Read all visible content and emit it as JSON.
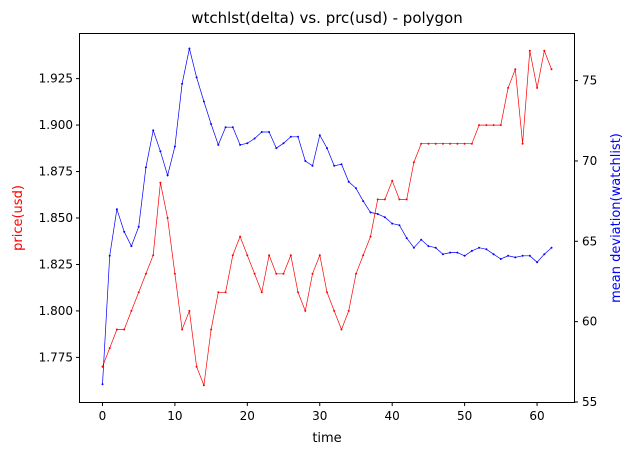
{
  "chart_data": {
    "type": "line",
    "title": "wtchlst(delta) vs. prc(usd) - polygon",
    "xlabel": "time",
    "ylabel_left": "price(usd)",
    "ylabel_right": "mean deviation(watchlist)",
    "xlim": [
      -3.1,
      65.1
    ],
    "ylim_left": [
      1.751,
      1.949
    ],
    "ylim_right": [
      55,
      77.9
    ],
    "x_ticks": [
      0,
      10,
      20,
      30,
      40,
      50,
      60
    ],
    "y_ticks_left": [
      "1.775",
      "1.800",
      "1.825",
      "1.850",
      "1.875",
      "1.900",
      "1.925"
    ],
    "y_ticks_left_values": [
      1.775,
      1.8,
      1.825,
      1.85,
      1.875,
      1.9,
      1.925
    ],
    "y_ticks_right": [
      "55",
      "60",
      "65",
      "70",
      "75"
    ],
    "y_ticks_right_values": [
      55,
      60,
      65,
      70,
      75
    ],
    "grid": false,
    "legend": "none",
    "series": [
      {
        "axis": "left",
        "color": "#ff0000",
        "x": [
          0,
          1,
          2,
          3,
          4,
          5,
          6,
          7,
          8,
          9,
          10,
          11,
          12,
          13,
          14,
          15,
          16,
          17,
          18,
          19,
          20,
          21,
          22,
          23,
          24,
          25,
          26,
          27,
          28,
          29,
          30,
          31,
          32,
          33,
          34,
          35,
          36,
          37,
          38,
          39,
          40,
          41,
          42,
          43,
          44,
          45,
          46,
          47,
          48,
          49,
          50,
          51,
          52,
          53,
          54,
          55,
          56,
          57,
          58,
          59,
          60,
          61,
          62
        ],
        "y": [
          1.77,
          1.78,
          1.79,
          1.79,
          1.8,
          1.81,
          1.82,
          1.83,
          1.869,
          1.85,
          1.82,
          1.79,
          1.8,
          1.77,
          1.76,
          1.79,
          1.81,
          1.81,
          1.83,
          1.84,
          1.83,
          1.82,
          1.81,
          1.83,
          1.82,
          1.82,
          1.83,
          1.81,
          1.8,
          1.82,
          1.83,
          1.81,
          1.8,
          1.79,
          1.8,
          1.82,
          1.83,
          1.84,
          1.86,
          1.86,
          1.87,
          1.86,
          1.86,
          1.88,
          1.89,
          1.89,
          1.89,
          1.89,
          1.89,
          1.89,
          1.89,
          1.89,
          1.9,
          1.9,
          1.9,
          1.9,
          1.92,
          1.93,
          1.89,
          1.94,
          1.92,
          1.94,
          1.93
        ]
      },
      {
        "axis": "right",
        "color": "#0000ff",
        "x": [
          0,
          1,
          2,
          3,
          4,
          5,
          6,
          7,
          8,
          9,
          10,
          11,
          12,
          13,
          14,
          15,
          16,
          17,
          18,
          19,
          20,
          21,
          22,
          23,
          24,
          25,
          26,
          27,
          28,
          29,
          30,
          31,
          32,
          33,
          34,
          35,
          36,
          37,
          38,
          39,
          40,
          41,
          42,
          43,
          44,
          45,
          46,
          47,
          48,
          49,
          50,
          51,
          52,
          53,
          54,
          55,
          56,
          57,
          58,
          59,
          60,
          61,
          62
        ],
        "y": [
          56.1,
          64.1,
          67.0,
          65.6,
          64.7,
          65.9,
          69.6,
          71.9,
          70.6,
          69.1,
          70.9,
          74.8,
          77.0,
          75.2,
          73.7,
          72.3,
          71.0,
          72.1,
          72.1,
          71.0,
          71.1,
          71.4,
          71.8,
          71.8,
          70.8,
          71.1,
          71.5,
          71.5,
          70.0,
          69.7,
          71.6,
          70.8,
          69.7,
          69.8,
          68.7,
          68.3,
          67.5,
          66.8,
          66.7,
          66.5,
          66.1,
          66.0,
          65.2,
          64.6,
          65.1,
          64.7,
          64.6,
          64.2,
          64.3,
          64.3,
          64.1,
          64.4,
          64.6,
          64.5,
          64.2,
          63.9,
          64.1,
          64.0,
          64.1,
          64.1,
          63.7,
          64.2,
          64.6
        ]
      }
    ]
  }
}
